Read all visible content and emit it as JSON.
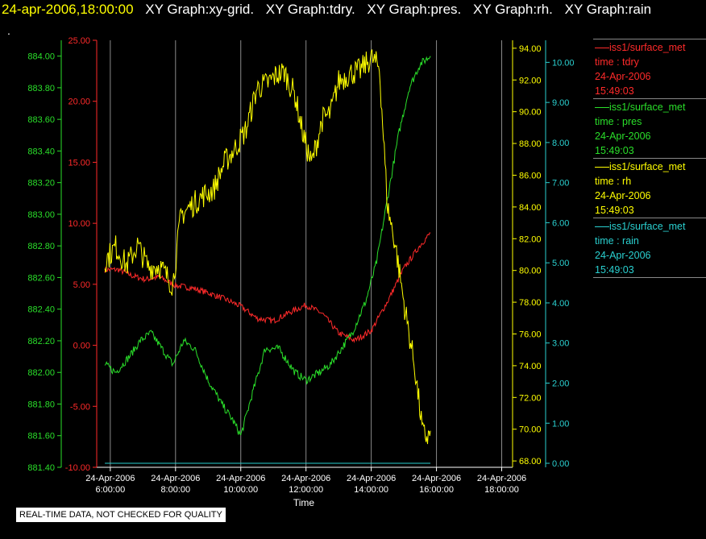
{
  "header": {
    "timestamp": "24-apr-2006,18:00:00",
    "graph_titles": [
      "XY Graph:xy-grid.",
      "XY Graph:tdry.",
      "XY Graph:pres.",
      "XY Graph:rh.",
      "XY Graph:rain"
    ]
  },
  "marker": ".",
  "footnote": "REAL-TIME DATA, NOT CHECKED FOR QUALITY",
  "legend": [
    {
      "source": "iss1/surface_met",
      "field": "time : tdry",
      "date": "24-Apr-2006",
      "time": "15:49:03",
      "color": "#ff2a2a"
    },
    {
      "source": "iss1/surface_met",
      "field": "time : pres",
      "date": "24-Apr-2006",
      "time": "15:49:03",
      "color": "#2adf2a"
    },
    {
      "source": "iss1/surface_met",
      "field": "time : rh",
      "date": "24-Apr-2006",
      "time": "15:49:03",
      "color": "#ffff00"
    },
    {
      "source": "iss1/surface_met",
      "field": "time : rain",
      "date": "24-Apr-2006",
      "time": "15:49:03",
      "color": "#2ad0d0"
    }
  ],
  "chart_data": {
    "type": "line",
    "title": "",
    "xlabel": "Time",
    "x_ticks": [
      {
        "date": "24-Apr-2006",
        "time": "6:00:00"
      },
      {
        "date": "24-Apr-2006",
        "time": "8:00:00"
      },
      {
        "date": "24-Apr-2006",
        "time": "10:00:00"
      },
      {
        "date": "24-Apr-2006",
        "time": "12:00:00"
      },
      {
        "date": "24-Apr-2006",
        "time": "14:00:00"
      },
      {
        "date": "24-Apr-2006",
        "time": "16:00:00"
      },
      {
        "date": "24-Apr-2006",
        "time": "18:00:00"
      }
    ],
    "xlim": [
      "24-Apr-2006 05:35:00",
      "24-Apr-2006 18:20:00"
    ],
    "grid": "vertical",
    "axes": [
      {
        "id": "tdry",
        "color": "#ff2a2a",
        "ylim": [
          -10,
          25
        ],
        "tick_labels": [
          "-10.00",
          "-5.00",
          "0.00",
          "5.00",
          "10.00",
          "15.00",
          "20.00",
          "25.00"
        ]
      },
      {
        "id": "pres",
        "color": "#2adf2a",
        "ylim": [
          881.4,
          884.1
        ],
        "tick_labels": [
          "881.40",
          "881.60",
          "881.80",
          "882.00",
          "882.20",
          "882.40",
          "882.60",
          "882.80",
          "883.00",
          "883.20",
          "883.40",
          "883.60",
          "883.80",
          "884.00"
        ]
      },
      {
        "id": "rh",
        "color": "#ffff00",
        "ylim": [
          67.6,
          94.5
        ],
        "tick_labels": [
          "68.00",
          "70.00",
          "72.00",
          "74.00",
          "76.00",
          "78.00",
          "80.00",
          "82.00",
          "84.00",
          "86.00",
          "88.00",
          "90.00",
          "92.00",
          "94.00"
        ]
      },
      {
        "id": "rain",
        "color": "#2ad0d0",
        "ylim": [
          -0.1,
          10.55
        ],
        "tick_labels": [
          "0.00",
          "1.00",
          "2.00",
          "3.00",
          "4.00",
          "5.00",
          "6.00",
          "7.00",
          "8.00",
          "9.00",
          "10.00"
        ]
      }
    ],
    "series": [
      {
        "name": "tdry",
        "axis": "tdry",
        "color": "#ff2a2a",
        "x": [
          "05:50",
          "06:15",
          "06:40",
          "07:05",
          "07:30",
          "08:00",
          "08:30",
          "09:00",
          "09:30",
          "10:00",
          "10:30",
          "11:00",
          "11:30",
          "12:00",
          "12:30",
          "13:00",
          "13:30",
          "14:00",
          "14:30",
          "15:00",
          "15:30",
          "15:49"
        ],
        "y": [
          6.2,
          6.2,
          5.7,
          5.4,
          5.6,
          4.9,
          4.7,
          4.3,
          3.8,
          3.2,
          2.2,
          2.0,
          2.7,
          3.3,
          2.6,
          1.0,
          0.4,
          1.2,
          3.6,
          6.3,
          8.2,
          9.2
        ]
      },
      {
        "name": "pres",
        "axis": "pres",
        "color": "#2adf2a",
        "x": [
          "05:50",
          "06:10",
          "06:35",
          "06:55",
          "07:15",
          "07:35",
          "07:55",
          "08:15",
          "08:35",
          "09:00",
          "09:25",
          "09:45",
          "10:00",
          "10:20",
          "10:45",
          "11:10",
          "11:40",
          "12:00",
          "12:25",
          "12:45",
          "13:05",
          "13:25",
          "13:50",
          "14:10",
          "14:30",
          "14:50",
          "15:10",
          "15:30",
          "15:49"
        ],
        "y": [
          882.05,
          882.0,
          882.1,
          882.2,
          882.25,
          882.15,
          882.05,
          882.2,
          882.15,
          881.95,
          881.8,
          881.7,
          881.6,
          881.85,
          882.15,
          882.15,
          882.0,
          881.95,
          882.0,
          882.05,
          882.15,
          882.25,
          882.45,
          882.7,
          883.1,
          883.5,
          883.8,
          883.95,
          884.0
        ]
      },
      {
        "name": "rh",
        "axis": "rh",
        "color": "#ffff00",
        "x": [
          "05:50",
          "06:10",
          "06:30",
          "06:50",
          "07:10",
          "07:30",
          "07:55",
          "08:10",
          "08:30",
          "08:50",
          "09:10",
          "09:30",
          "09:50",
          "10:10",
          "10:30",
          "10:50",
          "11:05",
          "11:20",
          "11:40",
          "11:55",
          "12:10",
          "12:30",
          "12:45",
          "13:00",
          "13:20",
          "13:40",
          "14:00",
          "14:15",
          "14:30",
          "14:45",
          "15:00",
          "15:20",
          "15:35",
          "15:45",
          "15:49"
        ],
        "y": [
          80.6,
          81.5,
          80.3,
          81.6,
          80.2,
          80.3,
          79.1,
          83.5,
          84.1,
          84.7,
          85.1,
          86.8,
          87.7,
          88.9,
          91.5,
          91.8,
          92.3,
          92.5,
          91.0,
          88.5,
          86.7,
          89.5,
          89.9,
          91.9,
          92.4,
          92.6,
          93.4,
          92.8,
          84.0,
          81.5,
          78.0,
          73.9,
          69.7,
          69.5,
          69.9
        ]
      },
      {
        "name": "rain",
        "axis": "rain",
        "color": "#2ad0d0",
        "x": [
          "05:50",
          "15:49"
        ],
        "y": [
          0.0,
          0.0
        ]
      }
    ]
  }
}
